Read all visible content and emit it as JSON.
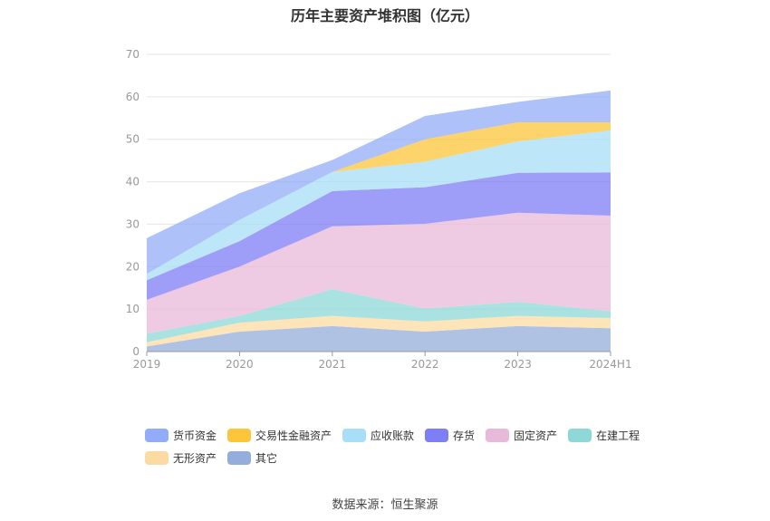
{
  "title": "历年主要资产堆积图（亿元）",
  "source": "数据来源：恒生聚源",
  "colors": {
    "货币资金": "#93acf7",
    "交易性金融资产": "#fcc53a",
    "应收账款": "#a8def7",
    "存货": "#7e7ef5",
    "固定资产": "#e9b9d9",
    "在建工程": "#8ed8d8",
    "无形资产": "#fcdba2",
    "其它": "#94aedb"
  },
  "chart_data": {
    "type": "area",
    "stacked": true,
    "categories": [
      "2019",
      "2020",
      "2021",
      "2022",
      "2023",
      "2024H1"
    ],
    "ylim": [
      0,
      70
    ],
    "yticks": [
      0,
      10,
      20,
      30,
      40,
      50,
      60,
      70
    ],
    "legend_position": "bottom",
    "series": [
      {
        "name": "其它",
        "values": [
          1.2,
          4.7,
          6.0,
          4.7,
          6.0,
          5.5
        ]
      },
      {
        "name": "无形资产",
        "values": [
          1.0,
          2.1,
          2.4,
          2.4,
          2.4,
          2.4
        ]
      },
      {
        "name": "在建工程",
        "values": [
          2.0,
          1.6,
          6.3,
          3.0,
          3.3,
          1.6
        ]
      },
      {
        "name": "固定资产",
        "values": [
          8.0,
          11.6,
          14.8,
          20.0,
          21.0,
          22.5
        ]
      },
      {
        "name": "存货",
        "values": [
          4.6,
          6.0,
          8.3,
          8.6,
          9.4,
          10.2
        ]
      },
      {
        "name": "应收账款",
        "values": [
          1.5,
          5.0,
          4.5,
          6.0,
          7.4,
          9.9
        ]
      },
      {
        "name": "交易性金融资产",
        "values": [
          0,
          0,
          0,
          5.3,
          4.5,
          1.9
        ]
      },
      {
        "name": "货币资金",
        "values": [
          8.4,
          6.3,
          2.8,
          5.5,
          4.8,
          7.5
        ]
      }
    ]
  },
  "legend": [
    "货币资金",
    "交易性金融资产",
    "应收账款",
    "存货",
    "固定资产",
    "在建工程",
    "无形资产",
    "其它"
  ]
}
